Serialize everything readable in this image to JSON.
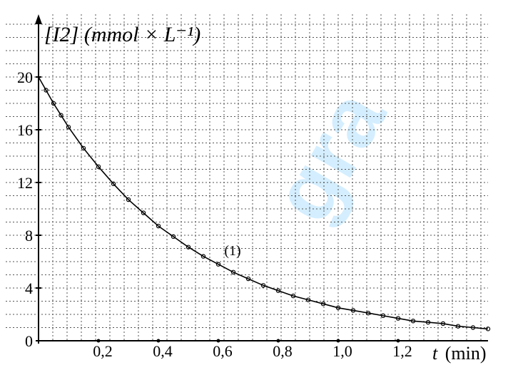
{
  "chart_data": {
    "type": "line",
    "xlabel": "t",
    "xunit": "(min)",
    "ylabel_symbol": "[I2]",
    "ylabel_unit": "(mmol × L⁻¹)",
    "x_tick_labels": [
      "0,2",
      "0,4",
      "0,6",
      "0,8",
      "1,0",
      "1,2"
    ],
    "x_ticks": [
      0.2,
      0.4,
      0.6,
      0.8,
      1.0,
      1.2
    ],
    "y_ticks": [
      0,
      4,
      8,
      12,
      16,
      20
    ],
    "y_tick_labels": [
      "0",
      "4",
      "8",
      "12",
      "16",
      "20"
    ],
    "xlim": [
      0,
      1.5
    ],
    "ylim": [
      0,
      22
    ],
    "grid": true,
    "curve_label": "(1)",
    "curve_label_at": {
      "x": 0.62,
      "y": 6.5
    },
    "series": [
      {
        "x": [
          0.0,
          0.025,
          0.05,
          0.075,
          0.1,
          0.15,
          0.2,
          0.25,
          0.3,
          0.35,
          0.4,
          0.45,
          0.5,
          0.55,
          0.6,
          0.65,
          0.7,
          0.75,
          0.8,
          0.85,
          0.9,
          0.95,
          1.0,
          1.05,
          1.1,
          1.15,
          1.2,
          1.25,
          1.3,
          1.35,
          1.4,
          1.45,
          1.5
        ],
        "y": [
          20.0,
          19.0,
          18.0,
          17.1,
          16.2,
          14.6,
          13.2,
          11.9,
          10.7,
          9.7,
          8.7,
          7.9,
          7.1,
          6.4,
          5.8,
          5.2,
          4.7,
          4.2,
          3.8,
          3.4,
          3.1,
          2.8,
          2.5,
          2.3,
          2.1,
          1.9,
          1.7,
          1.5,
          1.4,
          1.3,
          1.1,
          1.0,
          0.9
        ]
      }
    ]
  },
  "watermark_text": "gra"
}
